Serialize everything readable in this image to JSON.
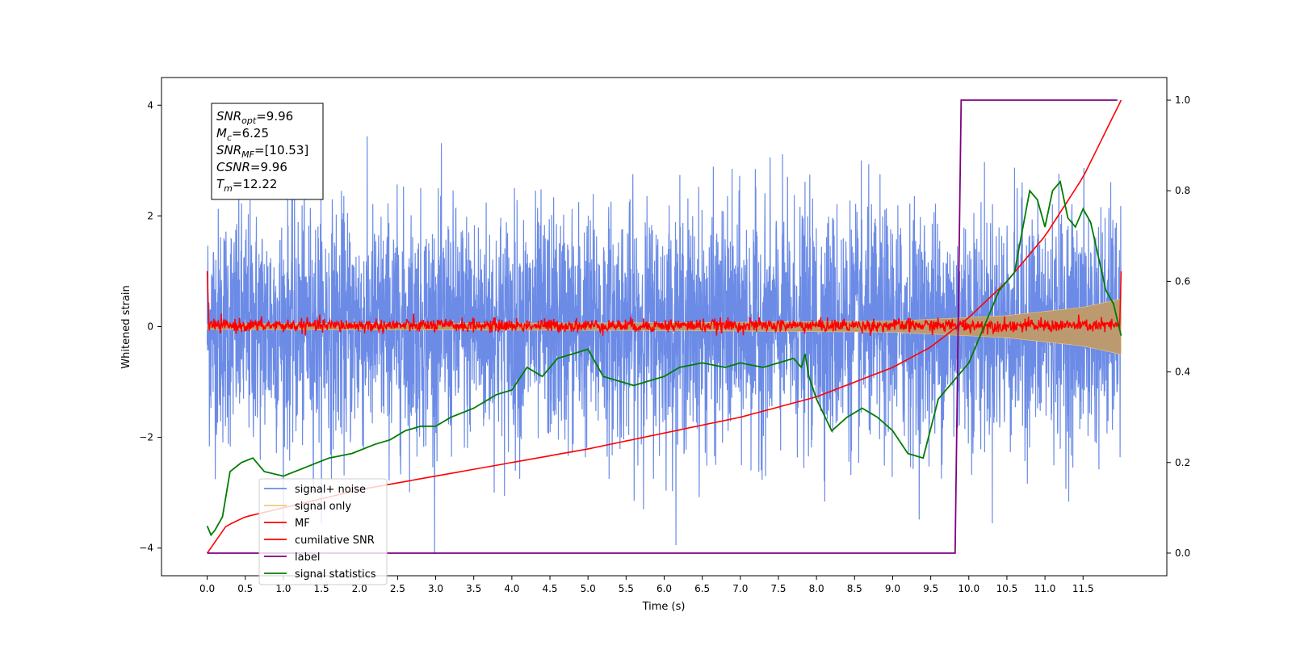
{
  "chart_data": {
    "type": "line",
    "xlabel": "Time (s)",
    "ylabel": "Whitened strain",
    "xlim": [
      -0.6,
      12.6
    ],
    "ylim": [
      -4.5,
      4.5
    ],
    "y2lim": [
      -0.05,
      1.05
    ],
    "x_ticks": [
      "0.0",
      "0.5",
      "1.0",
      "1.5",
      "2.0",
      "2.5",
      "3.0",
      "3.5",
      "4.0",
      "4.5",
      "5.0",
      "5.5",
      "6.0",
      "6.5",
      "7.0",
      "7.5",
      "8.0",
      "8.5",
      "9.0",
      "9.5",
      "10.0",
      "10.5",
      "11.0",
      "11.5"
    ],
    "y_ticks": [
      "−4",
      "−2",
      "0",
      "2",
      "4"
    ],
    "y2_ticks": [
      "0.0",
      "0.2",
      "0.4",
      "0.6",
      "0.8",
      "1.0"
    ],
    "grid": false,
    "legend_position": "lower-left",
    "colors": {
      "signal_noise": "#6b8be6",
      "signal_only": "#f5c77e",
      "signal_envelope_fill": "#bc9a70",
      "mf": "#ff0000",
      "cumulative_snr": "#ff0000",
      "label": "#800080",
      "signal_statistics": "#007d00"
    },
    "annotation": {
      "lines": [
        {
          "name": "SNR",
          "sub": "opt",
          "value": "=9.96"
        },
        {
          "name": "M",
          "sub": "c",
          "value": "=6.25"
        },
        {
          "name": "SNR",
          "sub": "MF",
          "value": "=[10.53]"
        },
        {
          "name": "CSNR",
          "sub": "",
          "value": "=9.96"
        },
        {
          "name": "T",
          "sub": "m",
          "value": "=12.22"
        }
      ]
    },
    "series": [
      {
        "name": "signal+ noise",
        "axis": "left",
        "noise_range": [
          -4.1,
          4.05
        ],
        "x_range": [
          0.0,
          12.0
        ]
      },
      {
        "name": "signal only",
        "axis": "left",
        "envelope": [
          [
            0.0,
            0.05
          ],
          [
            6.0,
            0.07
          ],
          [
            9.0,
            0.1
          ],
          [
            10.5,
            0.2
          ],
          [
            11.5,
            0.35
          ],
          [
            12.0,
            0.5
          ]
        ]
      },
      {
        "name": "MF",
        "axis": "left",
        "x": [
          0.0,
          0.02,
          0.1,
          0.5,
          1.0,
          2.0,
          3.0,
          4.0,
          5.0,
          6.0,
          7.0,
          8.0,
          9.0,
          10.0,
          11.0,
          11.98,
          12.0
        ],
        "y": [
          1.0,
          0.1,
          0.05,
          0.0,
          0.02,
          0.0,
          0.05,
          0.0,
          0.02,
          0.0,
          0.03,
          0.0,
          0.02,
          0.0,
          0.03,
          0.0,
          1.0
        ]
      },
      {
        "name": "cumilative SNR",
        "axis": "right",
        "x": [
          0.0,
          0.25,
          0.5,
          1.0,
          2.0,
          3.0,
          4.0,
          5.0,
          6.0,
          7.0,
          8.0,
          9.0,
          9.5,
          10.0,
          10.5,
          11.0,
          11.5,
          12.0
        ],
        "y": [
          0.0,
          0.06,
          0.08,
          0.1,
          0.14,
          0.17,
          0.2,
          0.23,
          0.265,
          0.3,
          0.345,
          0.41,
          0.455,
          0.52,
          0.6,
          0.7,
          0.83,
          1.0
        ]
      },
      {
        "name": "label",
        "axis": "right",
        "x": [
          0.0,
          9.82,
          9.9,
          11.95
        ],
        "y": [
          0.0,
          0.0,
          1.0,
          1.0
        ]
      },
      {
        "name": "signal statistics",
        "axis": "right",
        "x": [
          0.0,
          0.05,
          0.1,
          0.2,
          0.3,
          0.45,
          0.6,
          0.75,
          1.0,
          1.3,
          1.6,
          1.9,
          2.2,
          2.4,
          2.6,
          2.8,
          3.0,
          3.2,
          3.5,
          3.8,
          4.0,
          4.2,
          4.4,
          4.6,
          4.8,
          5.0,
          5.2,
          5.4,
          5.6,
          5.8,
          6.0,
          6.2,
          6.5,
          6.8,
          7.0,
          7.3,
          7.5,
          7.7,
          7.8,
          7.85,
          7.9,
          8.0,
          8.2,
          8.4,
          8.6,
          8.8,
          9.0,
          9.2,
          9.4,
          9.6,
          9.8,
          10.0,
          10.2,
          10.4,
          10.6,
          10.8,
          10.9,
          11.0,
          11.1,
          11.2,
          11.3,
          11.4,
          11.5,
          11.6,
          11.8,
          11.9,
          12.0
        ],
        "y": [
          0.06,
          0.04,
          0.05,
          0.08,
          0.18,
          0.2,
          0.21,
          0.18,
          0.17,
          0.19,
          0.21,
          0.22,
          0.24,
          0.25,
          0.27,
          0.28,
          0.28,
          0.3,
          0.32,
          0.35,
          0.36,
          0.41,
          0.39,
          0.43,
          0.44,
          0.45,
          0.39,
          0.38,
          0.37,
          0.38,
          0.39,
          0.41,
          0.42,
          0.41,
          0.42,
          0.41,
          0.42,
          0.43,
          0.41,
          0.44,
          0.39,
          0.34,
          0.27,
          0.3,
          0.32,
          0.3,
          0.27,
          0.22,
          0.21,
          0.34,
          0.38,
          0.42,
          0.5,
          0.58,
          0.62,
          0.8,
          0.78,
          0.72,
          0.8,
          0.82,
          0.74,
          0.72,
          0.76,
          0.73,
          0.58,
          0.55,
          0.48
        ]
      }
    ]
  }
}
